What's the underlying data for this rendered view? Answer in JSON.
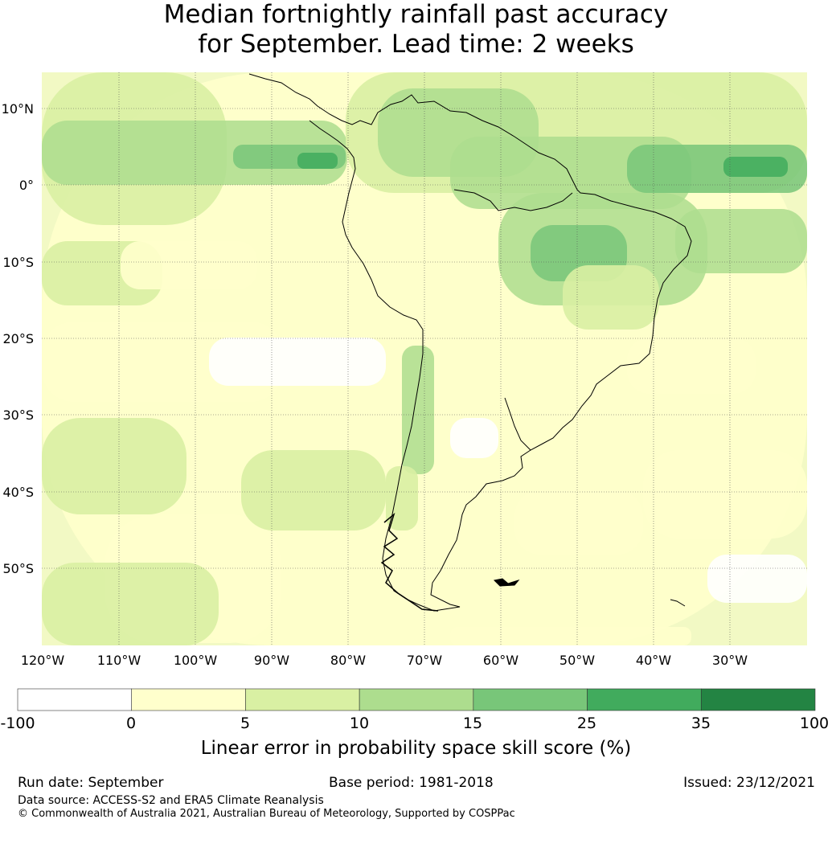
{
  "title": {
    "line1": "Median fortnightly rainfall past accuracy",
    "line2": "for September. Lead time: 2 weeks"
  },
  "map": {
    "lat_labels": [
      "10°N",
      "0°",
      "10°S",
      "20°S",
      "30°S",
      "40°S",
      "50°S"
    ],
    "lon_labels": [
      "120°W",
      "110°W",
      "100°W",
      "90°W",
      "80°W",
      "70°W",
      "60°W",
      "50°W",
      "40°W",
      "30°W"
    ],
    "grid_style": "dotted"
  },
  "colorbar": {
    "ticks": [
      "-100",
      "0",
      "5",
      "10",
      "15",
      "25",
      "35",
      "100"
    ],
    "colors": [
      "#ffffff",
      "#ffffcc",
      "#d9f0a3",
      "#addd8e",
      "#78c679",
      "#41ab5d",
      "#238443"
    ],
    "label": "Linear error in probability space skill score (%)"
  },
  "footer": {
    "run_date": "Run date: September",
    "base_period": "Base period: 1981-2018",
    "issued": "Issued: 23/12/2021",
    "data_source": "Data source: ACCESS-S2 and ERA5 Climate Reanalysis",
    "copyright": "© Commonwealth of Australia 2021, Australian Bureau of Meteorology, Supported by COSPPac"
  }
}
